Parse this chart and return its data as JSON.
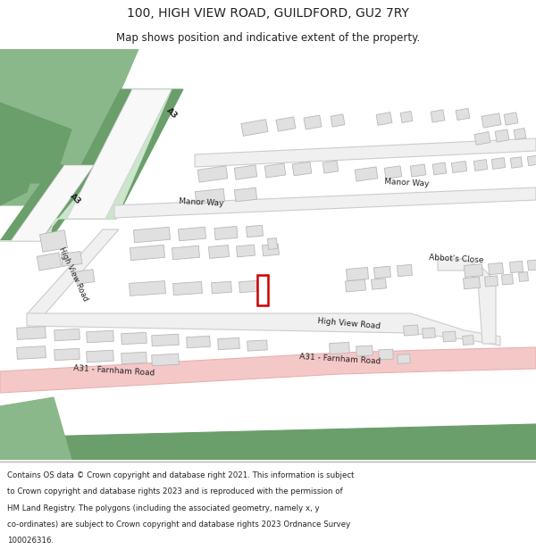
{
  "title_line1": "100, HIGH VIEW ROAD, GUILDFORD, GU2 7RY",
  "title_line2": "Map shows position and indicative extent of the property.",
  "footer_lines": [
    "Contains OS data © Crown copyright and database right 2021. This information is subject",
    "to Crown copyright and database rights 2023 and is reproduced with the permission of",
    "HM Land Registry. The polygons (including the associated geometry, namely x, y",
    "co-ordinates) are subject to Crown copyright and database rights 2023 Ordnance Survey",
    "100026316."
  ],
  "map_bg": "#ffffff",
  "road_pink_fill": "#f5c8c8",
  "road_pink_edge": "#e8b0b0",
  "building_color": "#e0e0e0",
  "building_stroke": "#b8b8b8",
  "green_dark": "#6a9e6a",
  "green_mid": "#8ab88a",
  "green_light": "#b5d5b5",
  "green_pale": "#cce5cc",
  "highlight_color": "#cc0000",
  "road_fill": "#f0f0f0",
  "road_edge": "#cccccc",
  "text_color": "#222222",
  "title_fontsize": 10,
  "subtitle_fontsize": 8.5,
  "footer_fontsize": 6.2,
  "label_fontsize": 6.5
}
